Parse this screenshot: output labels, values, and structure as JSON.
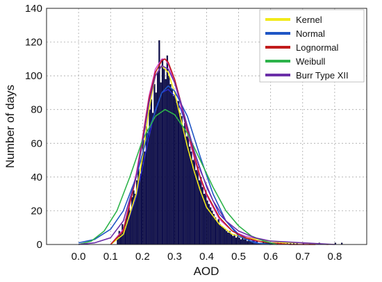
{
  "chart_data": {
    "type": "bar",
    "xlabel": "AOD",
    "ylabel": "Number of days",
    "xlim": [
      -0.1,
      0.9
    ],
    "ylim": [
      0,
      140
    ],
    "x_ticks": [
      "0.0",
      "0.1",
      "0.2",
      "0.3",
      "0.4",
      "0.5",
      "0.6",
      "0.7",
      "0.8"
    ],
    "y_ticks": [
      "0",
      "20",
      "40",
      "60",
      "80",
      "100",
      "120",
      "140"
    ],
    "grid": true,
    "legend_position": "top-right",
    "histogram": {
      "bin_width": 0.005,
      "color": "#0b0b52",
      "x": [
        0.12,
        0.125,
        0.13,
        0.135,
        0.14,
        0.145,
        0.15,
        0.155,
        0.16,
        0.165,
        0.17,
        0.175,
        0.18,
        0.185,
        0.19,
        0.195,
        0.2,
        0.205,
        0.21,
        0.215,
        0.22,
        0.225,
        0.23,
        0.235,
        0.24,
        0.245,
        0.25,
        0.255,
        0.26,
        0.265,
        0.27,
        0.275,
        0.28,
        0.285,
        0.29,
        0.295,
        0.3,
        0.305,
        0.31,
        0.315,
        0.32,
        0.325,
        0.33,
        0.335,
        0.34,
        0.345,
        0.35,
        0.355,
        0.36,
        0.365,
        0.37,
        0.375,
        0.38,
        0.385,
        0.39,
        0.395,
        0.4,
        0.405,
        0.41,
        0.415,
        0.42,
        0.425,
        0.43,
        0.435,
        0.44,
        0.445,
        0.45,
        0.455,
        0.46,
        0.465,
        0.47,
        0.475,
        0.48,
        0.485,
        0.49,
        0.495,
        0.5,
        0.505,
        0.51,
        0.515,
        0.52,
        0.525,
        0.53,
        0.535,
        0.54,
        0.545,
        0.55,
        0.555,
        0.56,
        0.565,
        0.57,
        0.575,
        0.58,
        0.585,
        0.59,
        0.595,
        0.6,
        0.605,
        0.61,
        0.62,
        0.63,
        0.64,
        0.65,
        0.66,
        0.67,
        0.68,
        0.7,
        0.72,
        0.75,
        0.8,
        0.82
      ],
      "values": [
        4,
        8,
        6,
        12,
        10,
        15,
        18,
        22,
        20,
        28,
        32,
        30,
        38,
        45,
        42,
        50,
        62,
        55,
        70,
        66,
        80,
        86,
        78,
        95,
        90,
        102,
        121,
        96,
        110,
        104,
        98,
        112,
        100,
        95,
        92,
        88,
        90,
        84,
        85,
        78,
        76,
        70,
        72,
        64,
        66,
        58,
        55,
        50,
        52,
        44,
        46,
        38,
        40,
        34,
        30,
        32,
        26,
        24,
        22,
        20,
        18,
        16,
        14,
        15,
        12,
        11,
        10,
        9,
        8,
        7,
        8,
        6,
        5,
        6,
        4,
        5,
        4,
        3,
        4,
        3,
        3,
        2,
        3,
        2,
        2,
        2,
        1,
        2,
        1,
        1,
        1,
        2,
        1,
        1,
        1,
        1,
        1,
        1,
        1,
        1,
        1,
        1,
        1,
        1,
        1,
        1,
        1,
        1,
        1,
        1,
        1
      ]
    },
    "series": [
      {
        "name": "Kernel",
        "color": "#f2ea1a",
        "x": [
          0.1,
          0.14,
          0.18,
          0.2,
          0.22,
          0.24,
          0.26,
          0.28,
          0.3,
          0.32,
          0.34,
          0.36,
          0.38,
          0.4,
          0.44,
          0.48,
          0.52,
          0.56,
          0.6,
          0.64,
          0.7,
          0.78
        ],
        "y": [
          0,
          6,
          30,
          52,
          80,
          100,
          106,
          102,
          90,
          74,
          58,
          44,
          32,
          22,
          12,
          6,
          4,
          3,
          2,
          1,
          1,
          0
        ]
      },
      {
        "name": "Normal",
        "color": "#1f56c5",
        "x": [
          0.0,
          0.05,
          0.1,
          0.14,
          0.18,
          0.22,
          0.26,
          0.28,
          0.3,
          0.34,
          0.38,
          0.42,
          0.46,
          0.5,
          0.55,
          0.6
        ],
        "y": [
          1,
          3,
          9,
          20,
          40,
          68,
          90,
          94,
          91,
          76,
          52,
          30,
          14,
          5,
          1,
          0
        ]
      },
      {
        "name": "Lognormal",
        "color": "#c11b1b",
        "x": [
          0.1,
          0.14,
          0.18,
          0.2,
          0.22,
          0.24,
          0.26,
          0.27,
          0.28,
          0.3,
          0.32,
          0.34,
          0.36,
          0.38,
          0.4,
          0.44,
          0.48,
          0.52,
          0.56,
          0.6,
          0.66,
          0.74
        ],
        "y": [
          0,
          8,
          40,
          62,
          86,
          102,
          109,
          110,
          108,
          98,
          84,
          68,
          54,
          40,
          30,
          16,
          8,
          4,
          2,
          1,
          0,
          0
        ]
      },
      {
        "name": "Weibull",
        "color": "#2db34a",
        "x": [
          0.0,
          0.04,
          0.08,
          0.12,
          0.16,
          0.2,
          0.24,
          0.27,
          0.3,
          0.34,
          0.38,
          0.42,
          0.46,
          0.5,
          0.54,
          0.58,
          0.62
        ],
        "y": [
          0,
          2,
          8,
          20,
          40,
          62,
          76,
          80,
          77,
          66,
          50,
          34,
          20,
          11,
          5,
          2,
          0
        ]
      },
      {
        "name": "Burr Type XII",
        "color": "#6b2fa8",
        "x": [
          0.0,
          0.05,
          0.1,
          0.14,
          0.18,
          0.2,
          0.22,
          0.24,
          0.26,
          0.28,
          0.3,
          0.32,
          0.34,
          0.36,
          0.38,
          0.42,
          0.46,
          0.5,
          0.55,
          0.6,
          0.7,
          0.8
        ],
        "y": [
          0,
          1,
          4,
          14,
          40,
          60,
          84,
          100,
          106,
          104,
          96,
          84,
          70,
          56,
          44,
          26,
          14,
          8,
          4,
          2,
          1,
          0
        ]
      }
    ],
    "extra_lines": [
      {
        "color": "#d13ec9",
        "x": [
          0.1,
          0.14,
          0.18,
          0.2,
          0.22,
          0.24,
          0.26,
          0.27,
          0.28,
          0.3,
          0.32,
          0.34,
          0.36,
          0.38,
          0.4,
          0.44,
          0.48,
          0.52,
          0.56,
          0.6,
          0.68,
          0.78
        ],
        "y": [
          0,
          9,
          42,
          64,
          88,
          104,
          110,
          110,
          107,
          96,
          82,
          66,
          52,
          39,
          29,
          15,
          8,
          5,
          3,
          2,
          1,
          0
        ]
      },
      {
        "color": "#2b2bd0",
        "x": [
          0.1,
          0.14,
          0.18,
          0.22,
          0.24,
          0.26,
          0.28,
          0.3,
          0.32,
          0.34,
          0.36,
          0.4,
          0.44,
          0.5,
          0.56
        ],
        "y": [
          0,
          6,
          28,
          64,
          80,
          90,
          92,
          88,
          80,
          68,
          56,
          34,
          18,
          6,
          1
        ]
      }
    ]
  }
}
